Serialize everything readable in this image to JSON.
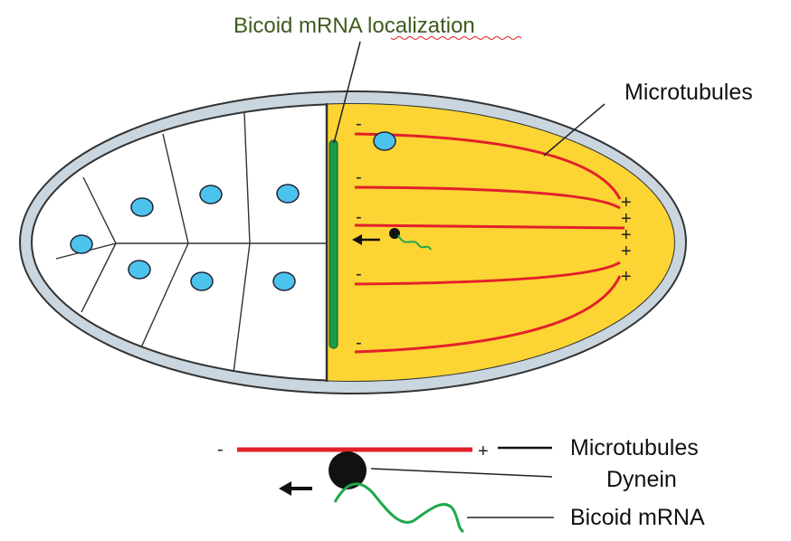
{
  "title": "Bicoid mRNA localization",
  "labels": {
    "microtubules_top": "Microtubules",
    "microtubules_legend": "Microtubules",
    "dynein": "Dynein",
    "bicoid_mrna": "Bicoid mRNA"
  },
  "signs": {
    "minus": "-",
    "plus": "+"
  },
  "colors": {
    "shell": "#c9d6df",
    "shell_outline": "#333333",
    "yolk": "#fcd434",
    "microtubule": "#e3202a",
    "mrna": "#1fa84a",
    "localization_bar": "#1b9a48",
    "nucleus": "#4cc3ec",
    "title_text": "#3f5a1e"
  }
}
